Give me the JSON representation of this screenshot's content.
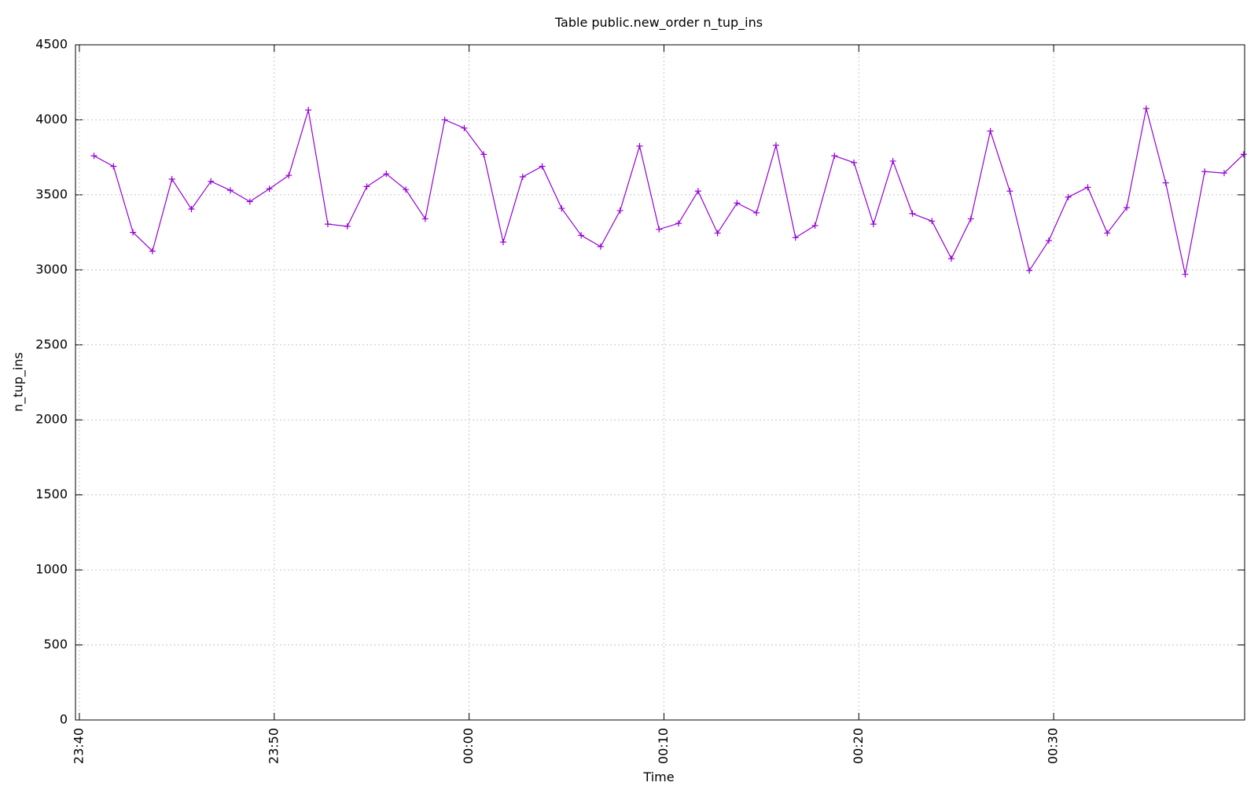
{
  "chart_data": {
    "type": "line",
    "title": "Table public.new_order n_tup_ins",
    "x_label": "Time",
    "y_label": "n_tup_ins",
    "x": [
      "23:40:45",
      "23:41:45",
      "23:42:45",
      "23:43:45",
      "23:44:45",
      "23:45:45",
      "23:46:45",
      "23:47:45",
      "23:48:45",
      "23:49:45",
      "23:50:45",
      "23:51:45",
      "23:52:45",
      "23:53:45",
      "23:54:45",
      "23:55:45",
      "23:56:45",
      "23:57:45",
      "23:58:45",
      "23:59:45",
      "00:00:45",
      "00:01:45",
      "00:02:45",
      "00:03:45",
      "00:04:45",
      "00:05:45",
      "00:06:45",
      "00:07:45",
      "00:08:45",
      "00:09:45",
      "00:10:45",
      "00:11:45",
      "00:12:45",
      "00:13:45",
      "00:14:45",
      "00:15:45",
      "00:16:45",
      "00:17:45",
      "00:18:45",
      "00:19:45",
      "00:20:45",
      "00:21:45",
      "00:22:45",
      "00:23:45",
      "00:24:45",
      "00:25:45",
      "00:26:45",
      "00:27:45",
      "00:28:45",
      "00:29:45",
      "00:30:45",
      "00:31:45",
      "00:32:45",
      "00:33:45",
      "00:34:45",
      "00:35:45",
      "00:36:45",
      "00:37:45",
      "00:38:45",
      "00:39:45"
    ],
    "values": [
      3760,
      3690,
      3250,
      3125,
      3605,
      3405,
      3590,
      3530,
      3455,
      3540,
      3630,
      4065,
      3305,
      3290,
      3555,
      3640,
      3535,
      3340,
      4000,
      3945,
      3770,
      3185,
      3620,
      3690,
      3410,
      3230,
      3155,
      3395,
      3825,
      3270,
      3310,
      3525,
      3245,
      3445,
      3380,
      3830,
      3215,
      3295,
      3760,
      3715,
      3305,
      3725,
      3375,
      3325,
      3075,
      3340,
      3925,
      3525,
      2995,
      3195,
      3485,
      3550,
      3245,
      3415,
      4075,
      3580,
      2970,
      3655,
      3645,
      3770
    ],
    "color": "#9400d3",
    "xlim": [
      "23:39:48",
      "00:39:48"
    ],
    "xticks": [
      {
        "value": "23:40:00",
        "label": "23:40"
      },
      {
        "value": "23:50:00",
        "label": "23:50"
      },
      {
        "value": "00:00:00",
        "label": "00:00"
      },
      {
        "value": "00:10:00",
        "label": "00:10"
      },
      {
        "value": "00:20:00",
        "label": "00:20"
      },
      {
        "value": "00:30:00",
        "label": "00:30"
      }
    ],
    "ylim": [
      0,
      4500
    ],
    "yticks": [
      0,
      500,
      1000,
      1500,
      2000,
      2500,
      3000,
      3500,
      4000,
      4500
    ],
    "grid": true
  }
}
